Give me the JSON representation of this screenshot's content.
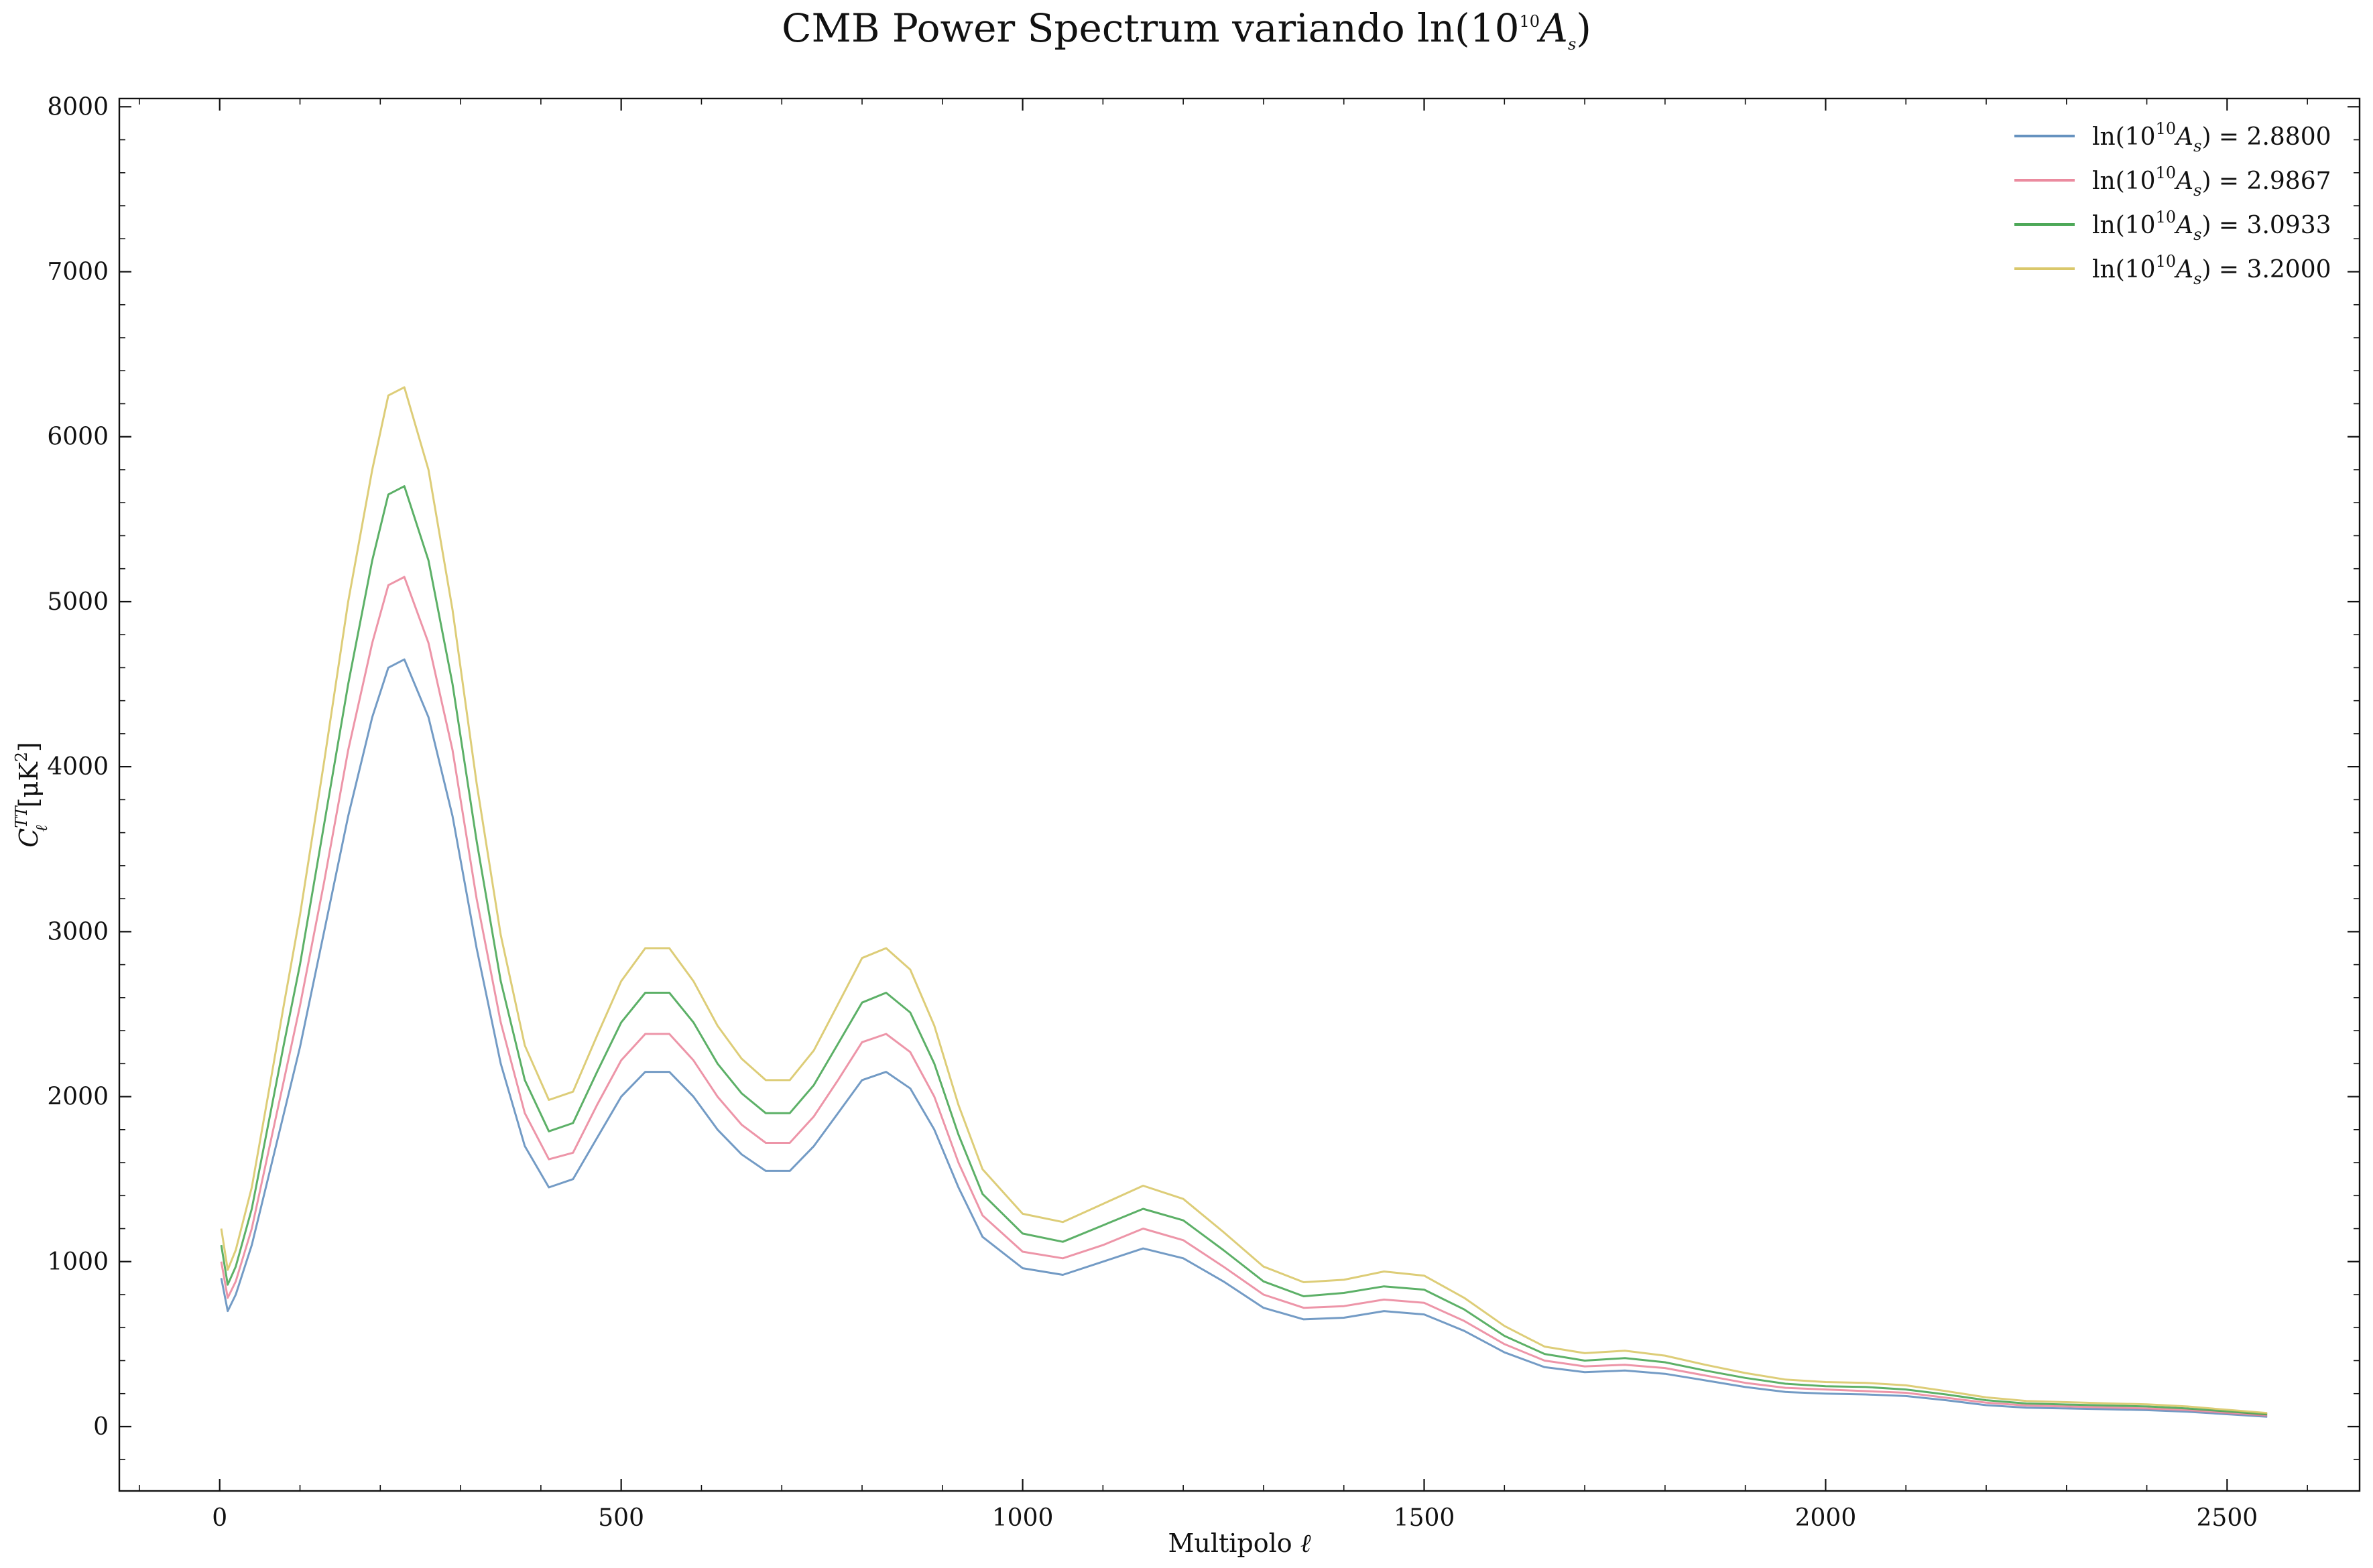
{
  "chart_data": {
    "type": "line",
    "title": {
      "prefix": "CMB Power Spectrum variando ln(10",
      "sup": "10",
      "var": "A",
      "sub": "s",
      "suffix": ")"
    },
    "xlabel": {
      "text": "Multipolo ",
      "var": "ℓ"
    },
    "ylabel": {
      "text": "C",
      "sup": "TT",
      "sub": "ℓ",
      "unit_open": " [μK",
      "unit_sup": "2",
      "unit_close": "]"
    },
    "xlim": [
      -125,
      2665
    ],
    "ylim": [
      -390,
      8050
    ],
    "xticks": [
      0,
      500,
      1000,
      1500,
      2000,
      2500
    ],
    "yticks": [
      0,
      1000,
      2000,
      3000,
      4000,
      5000,
      6000,
      7000,
      8000
    ],
    "grid": false,
    "legend_position": "top-right",
    "legend_label": {
      "prefix": "ln(10",
      "sup": "10",
      "var": "A",
      "sub": "s",
      "mid": ") = "
    },
    "x": [
      2,
      10,
      20,
      40,
      60,
      80,
      100,
      130,
      160,
      190,
      210,
      230,
      260,
      290,
      320,
      350,
      380,
      410,
      440,
      470,
      500,
      530,
      560,
      590,
      620,
      650,
      680,
      710,
      740,
      770,
      800,
      830,
      860,
      890,
      920,
      950,
      1000,
      1050,
      1100,
      1150,
      1200,
      1250,
      1300,
      1350,
      1400,
      1450,
      1500,
      1550,
      1600,
      1650,
      1700,
      1750,
      1800,
      1850,
      1900,
      1950,
      2000,
      2050,
      2100,
      2150,
      2200,
      2250,
      2300,
      2350,
      2400,
      2450,
      2500,
      2550
    ],
    "series": [
      {
        "name": "2.8800",
        "color": "#4c7fb5",
        "values": [
          900,
          700,
          800,
          1100,
          1500,
          1900,
          2300,
          3000,
          3700,
          4300,
          4600,
          4650,
          4300,
          3700,
          2900,
          2200,
          1700,
          1450,
          1500,
          1750,
          2000,
          2150,
          2150,
          2000,
          1800,
          1650,
          1550,
          1550,
          1700,
          1900,
          2100,
          2150,
          2050,
          1800,
          1450,
          1150,
          960,
          920,
          1000,
          1080,
          1020,
          880,
          720,
          650,
          660,
          700,
          680,
          580,
          450,
          360,
          330,
          340,
          320,
          280,
          240,
          210,
          200,
          195,
          185,
          160,
          130,
          115,
          110,
          105,
          100,
          90,
          75,
          60
        ]
      },
      {
        "name": "2.9867",
        "color": "#e8778f",
        "values": [
          1000,
          780,
          880,
          1200,
          1650,
          2100,
          2550,
          3300,
          4100,
          4750,
          5100,
          5150,
          4750,
          4100,
          3200,
          2450,
          1900,
          1620,
          1660,
          1950,
          2220,
          2380,
          2380,
          2220,
          2000,
          1830,
          1720,
          1720,
          1880,
          2100,
          2330,
          2380,
          2270,
          2000,
          1600,
          1280,
          1060,
          1020,
          1100,
          1200,
          1130,
          970,
          800,
          720,
          730,
          770,
          750,
          640,
          500,
          400,
          365,
          375,
          355,
          310,
          265,
          235,
          225,
          215,
          205,
          175,
          145,
          128,
          122,
          116,
          110,
          100,
          83,
          67
        ]
      },
      {
        "name": "3.0933",
        "color": "#2e9a3c",
        "values": [
          1100,
          860,
          970,
          1320,
          1820,
          2320,
          2800,
          3650,
          4500,
          5250,
          5650,
          5700,
          5250,
          4500,
          3550,
          2700,
          2100,
          1790,
          1840,
          2150,
          2450,
          2630,
          2630,
          2450,
          2200,
          2020,
          1900,
          1900,
          2070,
          2320,
          2570,
          2630,
          2510,
          2200,
          1770,
          1410,
          1170,
          1120,
          1220,
          1320,
          1250,
          1070,
          880,
          790,
          810,
          850,
          830,
          710,
          550,
          440,
          400,
          415,
          390,
          340,
          295,
          260,
          245,
          240,
          225,
          195,
          160,
          140,
          134,
          128,
          122,
          110,
          92,
          74
        ]
      },
      {
        "name": "3.2000",
        "color": "#d4bf52",
        "values": [
          1200,
          950,
          1070,
          1450,
          2000,
          2560,
          3100,
          4030,
          5000,
          5800,
          6250,
          6300,
          5800,
          4950,
          3900,
          2980,
          2310,
          1980,
          2030,
          2370,
          2700,
          2900,
          2900,
          2700,
          2430,
          2230,
          2100,
          2100,
          2280,
          2560,
          2840,
          2900,
          2770,
          2430,
          1950,
          1560,
          1290,
          1240,
          1350,
          1460,
          1380,
          1180,
          970,
          875,
          890,
          940,
          915,
          780,
          610,
          485,
          445,
          460,
          430,
          375,
          325,
          285,
          270,
          265,
          250,
          215,
          177,
          155,
          148,
          141,
          135,
          122,
          102,
          82
        ]
      }
    ]
  }
}
